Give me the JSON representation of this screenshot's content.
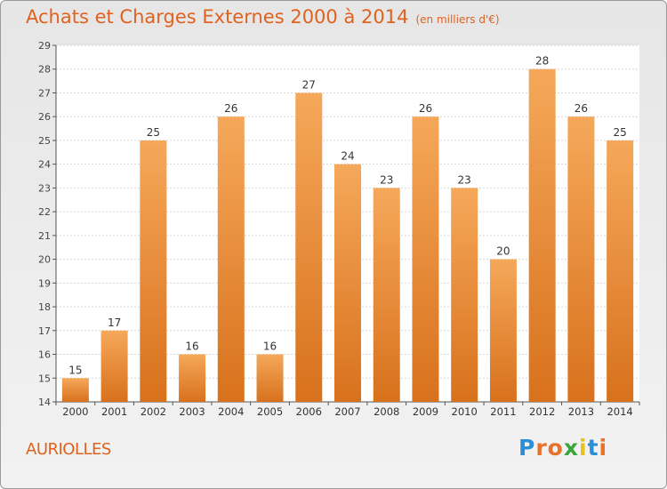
{
  "chart_data": {
    "type": "bar",
    "title": "Achats et Charges Externes 2000 à 2014",
    "subtitle": "(en milliers d'€)",
    "categories": [
      "2000",
      "2001",
      "2002",
      "2003",
      "2004",
      "2005",
      "2006",
      "2007",
      "2008",
      "2009",
      "2010",
      "2011",
      "2012",
      "2013",
      "2014"
    ],
    "values": [
      15,
      17,
      25,
      16,
      26,
      16,
      27,
      24,
      23,
      26,
      23,
      20,
      28,
      26,
      25
    ],
    "ylim": [
      14,
      29
    ],
    "yticks": [
      14,
      15,
      16,
      17,
      18,
      19,
      20,
      21,
      22,
      23,
      24,
      25,
      26,
      27,
      28,
      29
    ],
    "grid": true,
    "bar_color_top": "#f5a85a",
    "bar_color_bottom": "#d8711c"
  },
  "commune": "AURIOLLES",
  "logo": {
    "letters": [
      "P",
      "r",
      "o",
      "x",
      "i",
      "t",
      "i"
    ],
    "colors": [
      "#2a8fd6",
      "#e8722a",
      "#e8722a",
      "#3aa53a",
      "#e8c21a",
      "#2a8fd6",
      "#e8722a"
    ]
  }
}
